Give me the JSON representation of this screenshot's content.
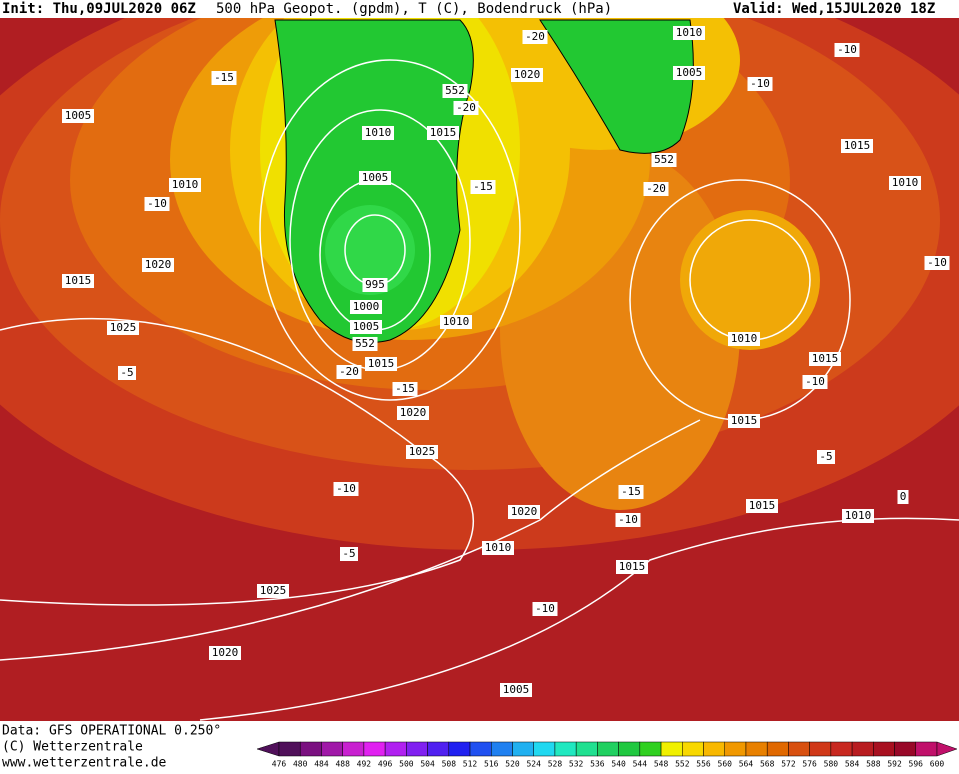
{
  "header": {
    "init": "Init: Thu,09JUL2020 06Z",
    "title": "500 hPa Geopot. (gpdm), T (C), Bodendruck (hPa)",
    "valid": "Valid: Wed,15JUL2020 18Z"
  },
  "footer": {
    "data": "Data: GFS OPERATIONAL 0.250°",
    "copyright": "(C) Wetterzentrale",
    "url": "www.wetterzentrale.de"
  },
  "legend": {
    "ticks": [
      476,
      480,
      484,
      488,
      492,
      496,
      500,
      504,
      508,
      512,
      516,
      520,
      524,
      528,
      532,
      536,
      540,
      544,
      548,
      552,
      556,
      560,
      564,
      568,
      572,
      576,
      580,
      584,
      588,
      592,
      596,
      600
    ],
    "colors": [
      "#50105a",
      "#7a1080",
      "#a018a8",
      "#c820d0",
      "#e020f0",
      "#b020f0",
      "#8020f0",
      "#5020f0",
      "#2020f0",
      "#2050f0",
      "#2080f0",
      "#20b0f0",
      "#20d8f0",
      "#20e8c0",
      "#20e090",
      "#20d060",
      "#20c840",
      "#30d020",
      "#f0f000",
      "#f8d800",
      "#f8b800",
      "#f09800",
      "#e88000",
      "#e06800",
      "#d85010",
      "#d03818",
      "#c82820",
      "#b81c20",
      "#a81020",
      "#980828",
      "#c0106a"
    ]
  },
  "labels": [
    "1005",
    "1010",
    "-10",
    "1020",
    "1015",
    "1025",
    "-5",
    "-15",
    "1010",
    "1015",
    "552",
    "-20",
    "1005",
    "-15",
    "995",
    "1000",
    "1005",
    "552",
    "1015",
    "-20",
    "-15",
    "1020",
    "1010",
    "1025",
    "-10",
    "-5",
    "1025",
    "1020",
    "-20",
    "1020",
    "1010",
    "1005",
    "-10",
    "-10",
    "1015",
    "1010",
    "552",
    "-20",
    "-10",
    "1010",
    "1015",
    "-10",
    "1015",
    "-5",
    "-15",
    "1015",
    "1010",
    "-10",
    "1020",
    "1010",
    "1015",
    "-10",
    "1005",
    "0"
  ]
}
